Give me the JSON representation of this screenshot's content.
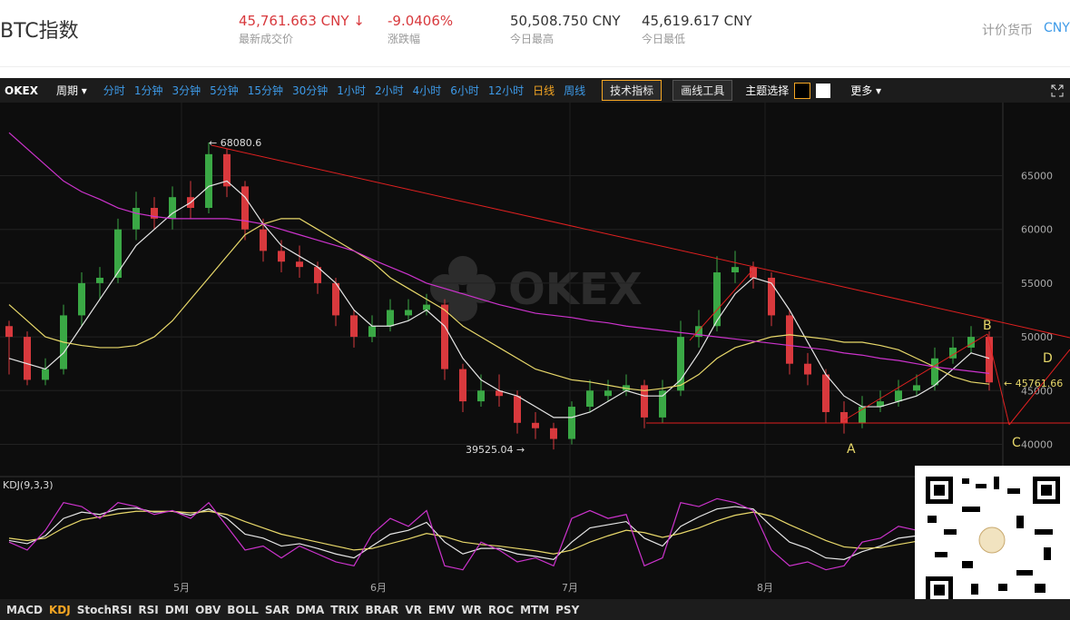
{
  "header": {
    "title": "BTC指数",
    "stats": [
      {
        "value": "45,761.663 CNY ↓",
        "label": "最新成交价"
      },
      {
        "value": "-9.0406%",
        "label": "涨跌幅"
      },
      {
        "value": "50,508.750 CNY",
        "label": "今日最高"
      },
      {
        "value": "45,619.617 CNY",
        "label": "今日最低"
      }
    ],
    "currency_label": "计价货币",
    "currency": "CNY"
  },
  "toolbar": {
    "brand": "OKEX",
    "period": "周期 ▾",
    "intervals": [
      "分时",
      "1分钟",
      "3分钟",
      "5分钟",
      "15分钟",
      "30分钟",
      "1小时",
      "2小时",
      "4小时",
      "6小时",
      "12小时",
      "日线",
      "周线"
    ],
    "active_interval": 11,
    "buttons": [
      "技术指标",
      "画线工具"
    ],
    "theme": "主题选择",
    "more": "更多 ▾"
  },
  "indicators": {
    "items": [
      "MACD",
      "KDJ",
      "StochRSI",
      "RSI",
      "DMI",
      "OBV",
      "BOLL",
      "SAR",
      "DMA",
      "TRIX",
      "BRAR",
      "VR",
      "EMV",
      "WR",
      "ROC",
      "MTM",
      "PSY"
    ],
    "active": 1
  },
  "chart_data": {
    "type": "candlestick",
    "up_color": "#3aa845",
    "down_color": "#d8393d",
    "candles": [
      [
        51000,
        51500,
        46500,
        50000
      ],
      [
        50000,
        50500,
        45500,
        46000
      ],
      [
        46000,
        48000,
        45500,
        47000
      ],
      [
        47000,
        53000,
        46500,
        52000
      ],
      [
        52000,
        56000,
        51000,
        55000
      ],
      [
        55000,
        56500,
        53500,
        55500
      ],
      [
        55500,
        61000,
        55000,
        60000
      ],
      [
        60000,
        63500,
        59000,
        62000
      ],
      [
        62000,
        63000,
        60000,
        61000
      ],
      [
        61000,
        64000,
        60000,
        63000
      ],
      [
        63000,
        64500,
        61000,
        62000
      ],
      [
        62000,
        68080.6,
        61500,
        67000
      ],
      [
        67000,
        67500,
        63000,
        64000
      ],
      [
        64000,
        64500,
        59000,
        60000
      ],
      [
        60000,
        61000,
        57000,
        58000
      ],
      [
        58000,
        59000,
        56000,
        57000
      ],
      [
        57000,
        58500,
        55500,
        56500
      ],
      [
        56500,
        57000,
        54000,
        55000
      ],
      [
        55000,
        55500,
        51000,
        52000
      ],
      [
        52000,
        52500,
        49000,
        50000
      ],
      [
        50000,
        52000,
        49500,
        51000
      ],
      [
        51000,
        53500,
        50500,
        52500
      ],
      [
        52000,
        53500,
        51500,
        52500
      ],
      [
        52500,
        54000,
        52000,
        53000
      ],
      [
        53000,
        53500,
        46000,
        47000
      ],
      [
        47000,
        47500,
        43000,
        44000
      ],
      [
        44000,
        46500,
        43500,
        45000
      ],
      [
        45000,
        46500,
        43500,
        44500
      ],
      [
        44500,
        45000,
        41000,
        42000
      ],
      [
        42000,
        43000,
        40500,
        41500
      ],
      [
        41500,
        42000,
        39525.04,
        40500
      ],
      [
        40500,
        44000,
        40000,
        43500
      ],
      [
        43500,
        46000,
        43000,
        45000
      ],
      [
        44500,
        46000,
        44000,
        45000
      ],
      [
        45000,
        46500,
        44500,
        45500
      ],
      [
        45500,
        46000,
        41500,
        42500
      ],
      [
        42500,
        46000,
        42000,
        45000
      ],
      [
        45000,
        51500,
        44500,
        50000
      ],
      [
        50000,
        52500,
        49000,
        51000
      ],
      [
        51000,
        57500,
        50500,
        56000
      ],
      [
        56000,
        58000,
        55000,
        56500
      ],
      [
        56500,
        57000,
        54500,
        55500
      ],
      [
        55500,
        56000,
        51000,
        52000
      ],
      [
        52000,
        52500,
        46500,
        47500
      ],
      [
        47500,
        48500,
        45500,
        46500
      ],
      [
        46500,
        47000,
        42000,
        43000
      ],
      [
        43000,
        44000,
        41000,
        42000
      ],
      [
        42000,
        44500,
        41500,
        43500
      ],
      [
        43500,
        45000,
        43000,
        44000
      ],
      [
        44000,
        46000,
        43500,
        45000
      ],
      [
        45000,
        46500,
        44500,
        45500
      ],
      [
        45500,
        49000,
        45000,
        48000
      ],
      [
        48000,
        50000,
        47500,
        49000
      ],
      [
        49000,
        51000,
        48500,
        50000
      ],
      [
        50000,
        50500,
        45000,
        45761.66
      ]
    ],
    "series": [
      {
        "color": "#e6e6e6",
        "values": [
          48000,
          47500,
          47000,
          48500,
          51000,
          53500,
          56000,
          58500,
          60000,
          61500,
          62500,
          64000,
          64500,
          63000,
          60500,
          58500,
          57500,
          56500,
          55000,
          52500,
          51000,
          51000,
          51500,
          52500,
          51000,
          48000,
          46000,
          45000,
          44500,
          43500,
          42500,
          42500,
          43000,
          44000,
          45000,
          44500,
          44500,
          46000,
          48500,
          51500,
          54000,
          55500,
          55000,
          52500,
          49500,
          46500,
          44500,
          43500,
          43500,
          44000,
          44500,
          45500,
          47000,
          48500,
          48000
        ]
      },
      {
        "color": "#e8d86a",
        "values": [
          53000,
          51500,
          50000,
          49500,
          49200,
          49000,
          49000,
          49200,
          50000,
          51500,
          53500,
          55500,
          57500,
          59500,
          60500,
          61000,
          61000,
          60000,
          59000,
          58000,
          57000,
          55500,
          54500,
          53500,
          52500,
          51000,
          50000,
          49000,
          48000,
          47000,
          46500,
          46000,
          45800,
          45500,
          45200,
          45000,
          45200,
          45500,
          46500,
          48000,
          49000,
          49500,
          50000,
          50200,
          50000,
          49800,
          49500,
          49500,
          49200,
          48800,
          48000,
          47200,
          46300,
          45800,
          45600
        ]
      },
      {
        "color": "#cc33cc",
        "values": [
          69000,
          67500,
          66000,
          64500,
          63500,
          62800,
          62000,
          61500,
          61200,
          61000,
          61000,
          61000,
          61000,
          60800,
          60500,
          60000,
          59500,
          59000,
          58500,
          58000,
          57200,
          56500,
          55800,
          55000,
          54500,
          54000,
          53500,
          53000,
          52600,
          52200,
          52000,
          51800,
          51500,
          51300,
          51000,
          50800,
          50600,
          50400,
          50200,
          50000,
          49800,
          49600,
          49400,
          49200,
          49000,
          48800,
          48500,
          48300,
          48000,
          47800,
          47500,
          47200,
          47000,
          46800,
          46600
        ]
      }
    ],
    "xlim": [
      -0.5,
      54.75
    ],
    "xticks": [
      {
        "value": 9.5,
        "label": "5月"
      },
      {
        "value": 20.35,
        "label": "6月"
      },
      {
        "value": 30.9,
        "label": "7月"
      },
      {
        "value": 41.65,
        "label": "8月"
      }
    ],
    "ylim": [
      37000,
      71800
    ],
    "yticks": [
      40000,
      45000,
      50000,
      55000,
      60000,
      65000
    ],
    "grid": true,
    "annotations": {
      "high": "← 68080.6",
      "low": "39525.04 →",
      "last": "← 45761.66",
      "points": [
        "A",
        "B",
        "C",
        "D"
      ]
    },
    "kdj": {
      "title": "KDJ(9,3,3)",
      "ylim": [
        0,
        100
      ],
      "series": [
        {
          "color": "#e6e6e6",
          "values": [
            42,
            38,
            48,
            70,
            78,
            75,
            82,
            83,
            78,
            79,
            74,
            82,
            70,
            50,
            45,
            35,
            38,
            32,
            25,
            20,
            35,
            50,
            55,
            65,
            40,
            25,
            32,
            32,
            25,
            22,
            18,
            40,
            58,
            62,
            66,
            45,
            35,
            60,
            72,
            82,
            85,
            82,
            60,
            40,
            32,
            20,
            18,
            28,
            35,
            45,
            48,
            60,
            72,
            78,
            60
          ]
        },
        {
          "color": "#e8d86a",
          "values": [
            45,
            42,
            45,
            58,
            68,
            72,
            76,
            79,
            79,
            79,
            77,
            79,
            75,
            66,
            58,
            50,
            45,
            40,
            35,
            30,
            32,
            38,
            44,
            51,
            47,
            40,
            37,
            35,
            32,
            29,
            25,
            30,
            40,
            48,
            55,
            52,
            46,
            51,
            58,
            67,
            74,
            78,
            73,
            62,
            52,
            42,
            34,
            32,
            33,
            37,
            41,
            47,
            55,
            63,
            62
          ]
        },
        {
          "color": "#cc33cc",
          "values": [
            40,
            30,
            55,
            90,
            85,
            70,
            90,
            85,
            75,
            80,
            70,
            90,
            60,
            30,
            35,
            20,
            35,
            25,
            15,
            10,
            50,
            70,
            60,
            80,
            10,
            5,
            40,
            30,
            15,
            20,
            10,
            70,
            80,
            70,
            75,
            10,
            20,
            90,
            85,
            95,
            90,
            80,
            30,
            10,
            15,
            5,
            10,
            40,
            45,
            60,
            55,
            80,
            90,
            85,
            30
          ]
        }
      ]
    }
  }
}
